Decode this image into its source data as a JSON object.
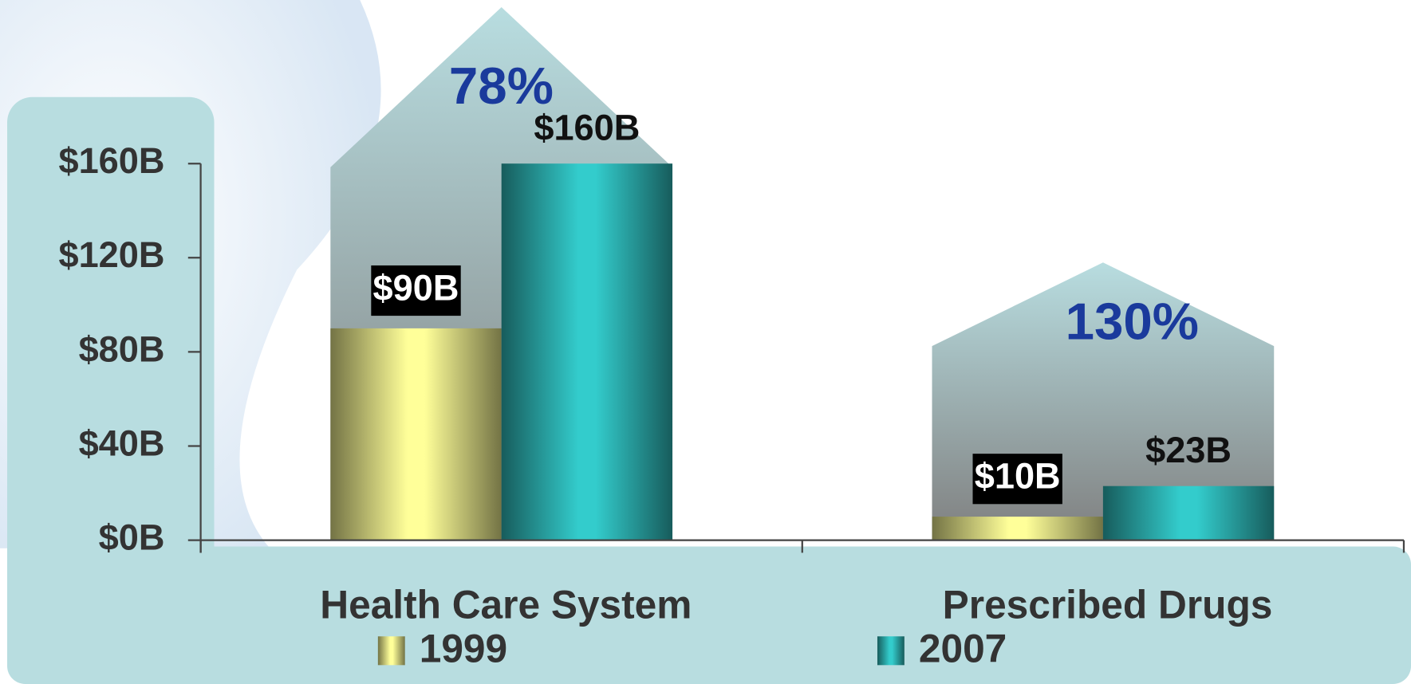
{
  "chart_data": {
    "type": "bar",
    "categories": [
      "Health Care System",
      "Prescribed Drugs"
    ],
    "series": [
      {
        "name": "1999",
        "color": "#ffff99",
        "values": [
          90,
          10
        ],
        "value_labels": [
          "$90B",
          "$10B"
        ]
      },
      {
        "name": "2007",
        "color": "#33cccc",
        "values": [
          160,
          23
        ],
        "value_labels": [
          "$160B",
          "$23B"
        ]
      }
    ],
    "annotations": [
      "78%",
      "130%"
    ],
    "ylim": [
      0,
      160
    ],
    "yticks": [
      {
        "value": 0,
        "label": "$0B"
      },
      {
        "value": 40,
        "label": "$40B"
      },
      {
        "value": 80,
        "label": "$80B"
      },
      {
        "value": 120,
        "label": "$120B"
      },
      {
        "value": 160,
        "label": "$160B"
      }
    ],
    "legend": "bottom"
  }
}
